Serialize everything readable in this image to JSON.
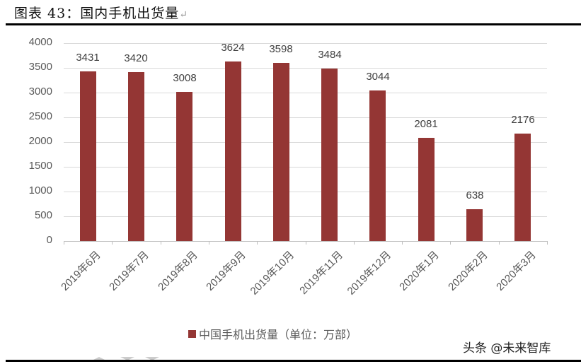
{
  "header": {
    "title": "图表 43：国内手机出货量",
    "return_mark": "↵"
  },
  "chart_data": {
    "type": "bar",
    "title": "国内手机出货量",
    "xlabel": "",
    "ylabel": "",
    "categories": [
      "2019年6月",
      "2019年7月",
      "2019年8月",
      "2019年9月",
      "2019年10月",
      "2019年11月",
      "2019年12月",
      "2020年1月",
      "2020年2月",
      "2020年3月"
    ],
    "series": [
      {
        "name": "中国手机出货量（单位：万部）",
        "values": [
          3431,
          3420,
          3008,
          3624,
          3598,
          3484,
          3044,
          2081,
          638,
          2176
        ],
        "color": "#943634"
      }
    ],
    "ylim": [
      0,
      4000
    ],
    "yticks": [
      "0",
      "500",
      "1000",
      "1500",
      "2000",
      "2500",
      "3000",
      "3500",
      "4000"
    ],
    "grid": true,
    "legend_position": "bottom",
    "data_labels": true
  },
  "legend": {
    "label": "中国手机出货量（单位：万部）"
  },
  "watermark": "头条 @未来智库"
}
